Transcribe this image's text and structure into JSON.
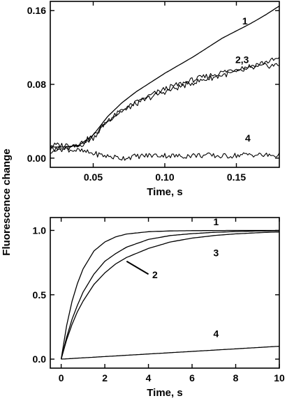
{
  "ylabel": "Fluorescence change",
  "chart_data": [
    {
      "type": "line",
      "title": "",
      "xlabel": "Time, s",
      "ylabel": "Fluorescence change",
      "xlim": [
        0.02,
        0.18
      ],
      "ylim": [
        -0.01,
        0.17
      ],
      "xticks": [
        0.05,
        0.1,
        0.15
      ],
      "xtick_labels": [
        "0.05",
        "0.10",
        "0.15"
      ],
      "yticks": [
        0.0,
        0.08,
        0.16
      ],
      "ytick_labels": [
        "0.00",
        "0.08",
        "0.16"
      ],
      "grid": false,
      "series": [
        {
          "name": "1",
          "x": [
            0.02,
            0.03,
            0.04,
            0.05,
            0.06,
            0.07,
            0.08,
            0.09,
            0.1,
            0.11,
            0.12,
            0.13,
            0.14,
            0.15,
            0.16,
            0.17,
            0.18
          ],
          "values": [
            0.012,
            0.012,
            0.014,
            0.025,
            0.045,
            0.06,
            0.072,
            0.082,
            0.092,
            0.101,
            0.11,
            0.12,
            0.13,
            0.138,
            0.146,
            0.155,
            0.165
          ],
          "noisy": false
        },
        {
          "name": "2,3",
          "x": [
            0.02,
            0.03,
            0.04,
            0.05,
            0.06,
            0.07,
            0.08,
            0.09,
            0.1,
            0.11,
            0.12,
            0.13,
            0.14,
            0.15,
            0.16,
            0.17,
            0.18
          ],
          "values": [
            0.008,
            0.01,
            0.013,
            0.022,
            0.04,
            0.052,
            0.06,
            0.068,
            0.075,
            0.08,
            0.085,
            0.089,
            0.093,
            0.097,
            0.1,
            0.104,
            0.108
          ],
          "noisy": true
        },
        {
          "name": "2,3",
          "x": [
            0.02,
            0.03,
            0.04,
            0.05,
            0.06,
            0.07,
            0.08,
            0.09,
            0.1,
            0.11,
            0.12,
            0.13,
            0.14,
            0.15,
            0.16,
            0.17,
            0.18
          ],
          "values": [
            0.014,
            0.014,
            0.015,
            0.024,
            0.041,
            0.051,
            0.059,
            0.066,
            0.072,
            0.077,
            0.082,
            0.086,
            0.09,
            0.093,
            0.097,
            0.1,
            0.101
          ],
          "noisy": true
        },
        {
          "name": "4",
          "x": [
            0.02,
            0.03,
            0.04,
            0.05,
            0.06,
            0.07,
            0.08,
            0.09,
            0.1,
            0.11,
            0.12,
            0.13,
            0.14,
            0.15,
            0.16,
            0.17,
            0.18
          ],
          "values": [
            0.01,
            0.01,
            0.008,
            0.005,
            0.002,
            0.0,
            0.002,
            0.003,
            0.003,
            0.002,
            0.003,
            0.003,
            0.002,
            0.003,
            0.004,
            0.003,
            0.003
          ],
          "noisy": true
        }
      ],
      "annotations": [
        {
          "text": "1",
          "x": 0.156,
          "y": 0.145
        },
        {
          "text": "2,3",
          "x": 0.154,
          "y": 0.103
        },
        {
          "text": "4",
          "x": 0.158,
          "y": 0.018
        }
      ]
    },
    {
      "type": "line",
      "title": "",
      "xlabel": "Time, s",
      "ylabel": "Fluorescence change",
      "xlim": [
        -0.5,
        10
      ],
      "ylim": [
        -0.07,
        1.1
      ],
      "xticks": [
        0,
        2,
        4,
        6,
        8,
        10
      ],
      "xtick_labels": [
        "0",
        "2",
        "4",
        "6",
        "8",
        "10"
      ],
      "yticks": [
        0.0,
        0.5,
        1.0
      ],
      "ytick_labels": [
        "0.0",
        "0.5",
        "1.0"
      ],
      "grid": false,
      "series": [
        {
          "name": "1",
          "x": [
            0,
            0.25,
            0.5,
            0.75,
            1,
            1.5,
            2,
            2.5,
            3,
            4,
            5,
            6,
            7,
            8,
            9,
            10
          ],
          "values": [
            0.0,
            0.26,
            0.45,
            0.59,
            0.7,
            0.84,
            0.91,
            0.95,
            0.972,
            0.99,
            0.996,
            0.998,
            0.999,
            1.0,
            1.0,
            1.0
          ]
        },
        {
          "name": "2",
          "x": [
            0,
            0.25,
            0.5,
            0.75,
            1,
            1.5,
            2,
            2.5,
            3,
            4,
            5,
            6,
            7,
            8,
            9,
            10
          ],
          "values": [
            0.0,
            0.17,
            0.31,
            0.42,
            0.52,
            0.66,
            0.76,
            0.82,
            0.87,
            0.93,
            0.96,
            0.975,
            0.985,
            0.991,
            0.995,
            0.997
          ]
        },
        {
          "name": "3",
          "x": [
            0,
            0.25,
            0.5,
            0.75,
            1,
            1.5,
            2,
            2.5,
            3,
            4,
            5,
            6,
            7,
            8,
            9,
            10
          ],
          "values": [
            0.0,
            0.15,
            0.27,
            0.37,
            0.45,
            0.58,
            0.67,
            0.74,
            0.79,
            0.86,
            0.91,
            0.94,
            0.96,
            0.973,
            0.982,
            0.988
          ]
        },
        {
          "name": "4",
          "x": [
            0,
            2,
            4,
            6,
            8,
            10
          ],
          "values": [
            0.0,
            0.02,
            0.04,
            0.06,
            0.08,
            0.1
          ]
        }
      ],
      "annotations": [
        {
          "text": "1",
          "x": 7.1,
          "y": 1.04
        },
        {
          "text": "2",
          "x": 4.3,
          "y": 0.63
        },
        {
          "text": "3",
          "x": 7.1,
          "y": 0.8
        },
        {
          "text": "4",
          "x": 7.1,
          "y": 0.17
        }
      ]
    }
  ]
}
